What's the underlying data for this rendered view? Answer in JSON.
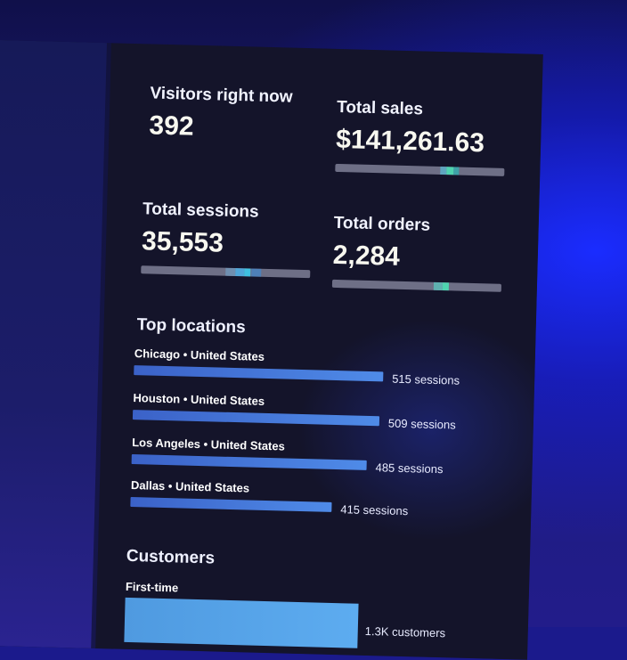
{
  "metrics": {
    "visitors": {
      "label": "Visitors right now",
      "value": "392"
    },
    "sales": {
      "label": "Total sales",
      "value": "$141,261.63"
    },
    "sessions": {
      "label": "Total sessions",
      "value": "35,553"
    },
    "orders": {
      "label": "Total orders",
      "value": "2,284"
    }
  },
  "top_locations": {
    "title": "Top locations",
    "items": [
      {
        "label": "Chicago • United States",
        "sessions": "515 sessions",
        "count": 515
      },
      {
        "label": "Houston • United States",
        "sessions": "509 sessions",
        "count": 509
      },
      {
        "label": "Los Angeles • United States",
        "sessions": "485 sessions",
        "count": 485
      },
      {
        "label": "Dallas • United States",
        "sessions": "415 sessions",
        "count": 415
      }
    ]
  },
  "customers": {
    "title": "Customers",
    "first_time_label": "First-time",
    "first_time_count": "1.3K customers"
  },
  "colors": {
    "accent_bar": "#4f8be8",
    "spark_highlight": "#4fd3b0",
    "panel_bg": "#14142a"
  }
}
